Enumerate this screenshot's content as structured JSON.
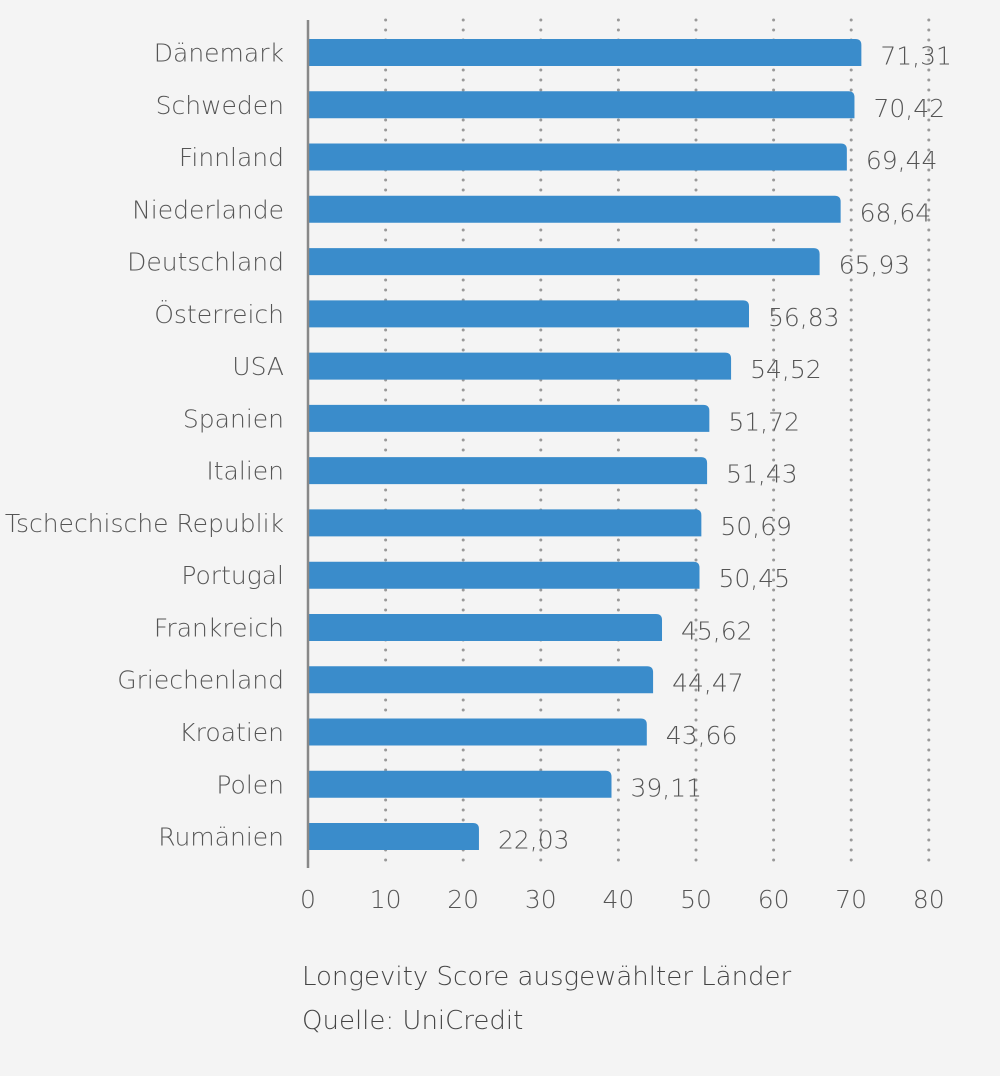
{
  "chart_data": {
    "type": "bar",
    "orientation": "horizontal",
    "categories": [
      "Dänemark",
      "Schweden",
      "Finnland",
      "Niederlande",
      "Deutschland",
      "Österreich",
      "USA",
      "Spanien",
      "Italien",
      "Tschechische Republik",
      "Portugal",
      "Frankreich",
      "Griechenland",
      "Kroatien",
      "Polen",
      "Rumänien"
    ],
    "values": [
      71.31,
      70.42,
      69.44,
      68.64,
      65.93,
      56.83,
      54.52,
      51.72,
      51.43,
      50.69,
      50.45,
      45.62,
      44.47,
      43.66,
      39.11,
      22.03
    ],
    "value_labels": [
      "71,31",
      "70,42",
      "69,44",
      "68,64",
      "65,93",
      "56,83",
      "54,52",
      "51,72",
      "51,43",
      "50,69",
      "50,45",
      "45,62",
      "44,47",
      "43,66",
      "39,11",
      "22,03"
    ],
    "xlim": [
      0,
      80
    ],
    "xticks": [
      0,
      10,
      20,
      30,
      40,
      50,
      60,
      70,
      80
    ],
    "xtick_labels": [
      "0",
      "10",
      "20",
      "30",
      "40",
      "50",
      "60",
      "70",
      "80"
    ],
    "grid": "vertical-dotted",
    "bar_color": "#3a8ccb",
    "caption": "Longevity Score ausgewählter Länder",
    "source": "Quelle: UniCredit"
  }
}
